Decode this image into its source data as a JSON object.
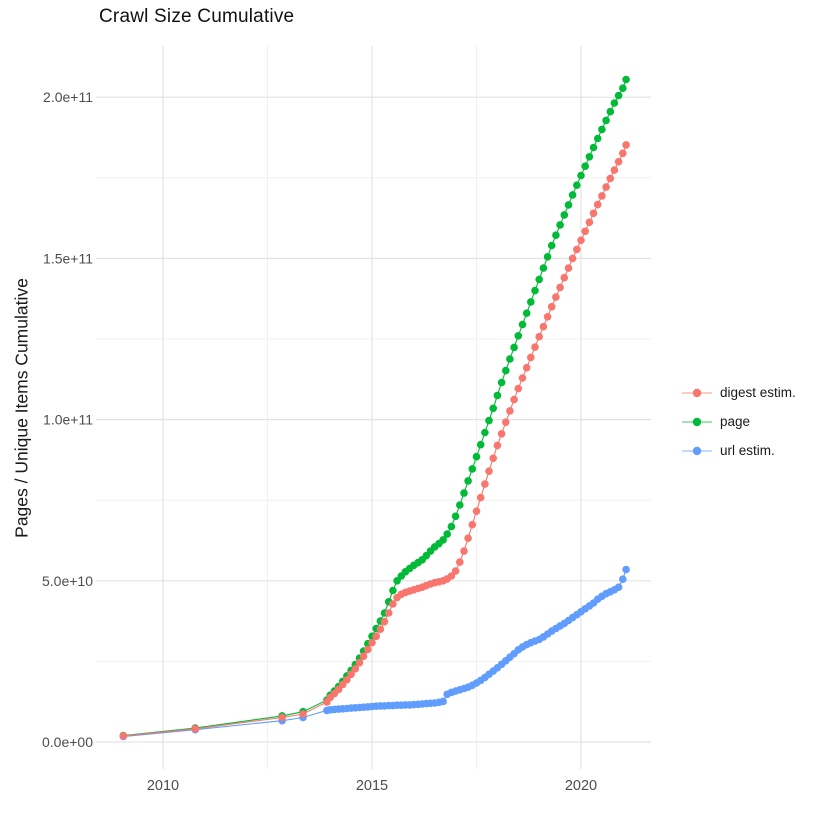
{
  "title": "Crawl Size Cumulative",
  "axes": {
    "y_label": "Pages / Unique Items Cumulative",
    "y_ticks": [
      {
        "label": "0.0e+00",
        "value": 0
      },
      {
        "label": "5.0e+10",
        "value": 50000000000.0
      },
      {
        "label": "1.0e+11",
        "value": 100000000000.0
      },
      {
        "label": "1.5e+11",
        "value": 150000000000.0
      },
      {
        "label": "2.0e+11",
        "value": 200000000000.0
      }
    ],
    "y_minor": [
      25000000000.0,
      75000000000.0,
      125000000000.0,
      175000000000.0
    ],
    "x_ticks": [
      {
        "label": "2010",
        "value": 2010
      },
      {
        "label": "2015",
        "value": 2015
      },
      {
        "label": "2020",
        "value": 2020
      }
    ],
    "x_minor": [
      2012.5,
      2017.5
    ]
  },
  "legend": [
    {
      "label": "digest estim.",
      "color": "#F8766D"
    },
    {
      "label": "page",
      "color": "#00BA38"
    },
    {
      "label": "url estim.",
      "color": "#619CFF"
    }
  ],
  "chart_data": {
    "type": "scatter",
    "title": "Crawl Size Cumulative",
    "xlabel": "",
    "ylabel": "Pages / Unique Items Cumulative",
    "x_range": [
      2008.4,
      2021.7
    ],
    "ylim": [
      0,
      210000000000.0
    ],
    "grid": true,
    "legend_position": "right",
    "series": [
      {
        "name": "page",
        "color": "#00BA38",
        "points": [
          [
            2009.05,
            2000000000.0
          ],
          [
            2010.77,
            4300000000.0
          ],
          [
            2012.85,
            8100000000.0
          ],
          [
            2013.35,
            9400000000.0
          ],
          [
            2013.92,
            13000000000.0
          ],
          [
            2014.0,
            14500000000.0
          ],
          [
            2014.1,
            15800000000.0
          ],
          [
            2014.2,
            17200000000.0
          ],
          [
            2014.3,
            18800000000.0
          ],
          [
            2014.4,
            20500000000.0
          ],
          [
            2014.5,
            22200000000.0
          ],
          [
            2014.6,
            24000000000.0
          ],
          [
            2014.7,
            26000000000.0
          ],
          [
            2014.8,
            28200000000.0
          ],
          [
            2014.9,
            30500000000.0
          ],
          [
            2015.0,
            32800000000.0
          ],
          [
            2015.1,
            35200000000.0
          ],
          [
            2015.2,
            37500000000.0
          ],
          [
            2015.3,
            40000000000.0
          ],
          [
            2015.4,
            43500000000.0
          ],
          [
            2015.5,
            47000000000.0
          ],
          [
            2015.6,
            50000000000.0
          ],
          [
            2015.7,
            51500000000.0
          ],
          [
            2015.8,
            52800000000.0
          ],
          [
            2015.9,
            53800000000.0
          ],
          [
            2016.0,
            54800000000.0
          ],
          [
            2016.1,
            55600000000.0
          ],
          [
            2016.2,
            56500000000.0
          ],
          [
            2016.3,
            57800000000.0
          ],
          [
            2016.4,
            59200000000.0
          ],
          [
            2016.5,
            60500000000.0
          ],
          [
            2016.6,
            61500000000.0
          ],
          [
            2016.7,
            62700000000.0
          ],
          [
            2016.8,
            64500000000.0
          ],
          [
            2016.9,
            66800000000.0
          ],
          [
            2017.0,
            70000000000.0
          ],
          [
            2017.1,
            73500000000.0
          ],
          [
            2017.2,
            77200000000.0
          ],
          [
            2017.3,
            81000000000.0
          ],
          [
            2017.4,
            84700000000.0
          ],
          [
            2017.5,
            88500000000.0
          ],
          [
            2017.6,
            92200000000.0
          ],
          [
            2017.7,
            96000000000.0
          ],
          [
            2017.8,
            99700000000.0
          ],
          [
            2017.9,
            103500000000.0
          ],
          [
            2018.0,
            107500000000.0
          ],
          [
            2018.1,
            111500000000.0
          ],
          [
            2018.2,
            115200000000.0
          ],
          [
            2018.3,
            118800000000.0
          ],
          [
            2018.4,
            122400000000.0
          ],
          [
            2018.5,
            126000000000.0
          ],
          [
            2018.6,
            129500000000.0
          ],
          [
            2018.7,
            133000000000.0
          ],
          [
            2018.8,
            136500000000.0
          ],
          [
            2018.9,
            140000000000.0
          ],
          [
            2019.0,
            143500000000.0
          ],
          [
            2019.1,
            147000000000.0
          ],
          [
            2019.2,
            150500000000.0
          ],
          [
            2019.3,
            154000000000.0
          ],
          [
            2019.4,
            157200000000.0
          ],
          [
            2019.5,
            160400000000.0
          ],
          [
            2019.6,
            163500000000.0
          ],
          [
            2019.7,
            166600000000.0
          ],
          [
            2019.8,
            169700000000.0
          ],
          [
            2019.9,
            172700000000.0
          ],
          [
            2020.0,
            175700000000.0
          ],
          [
            2020.1,
            178600000000.0
          ],
          [
            2020.2,
            181500000000.0
          ],
          [
            2020.3,
            184400000000.0
          ],
          [
            2020.4,
            187200000000.0
          ],
          [
            2020.5,
            190000000000.0
          ],
          [
            2020.6,
            192800000000.0
          ],
          [
            2020.7,
            195500000000.0
          ],
          [
            2020.8,
            198200000000.0
          ],
          [
            2020.9,
            200500000000.0
          ],
          [
            2021.0,
            202800000000.0
          ],
          [
            2021.08,
            205500000000.0
          ]
        ]
      },
      {
        "name": "url estim.",
        "color": "#619CFF",
        "points": [
          [
            2009.05,
            1700000000.0
          ],
          [
            2010.77,
            3800000000.0
          ],
          [
            2012.85,
            6600000000.0
          ],
          [
            2013.35,
            7600000000.0
          ],
          [
            2013.92,
            9800000000.0
          ],
          [
            2014.0,
            10000000000.0
          ],
          [
            2014.1,
            10100000000.0
          ],
          [
            2014.2,
            10200000000.0
          ],
          [
            2014.3,
            10300000000.0
          ],
          [
            2014.4,
            10400000000.0
          ],
          [
            2014.5,
            10500000000.0
          ],
          [
            2014.6,
            10600000000.0
          ],
          [
            2014.7,
            10700000000.0
          ],
          [
            2014.8,
            10800000000.0
          ],
          [
            2014.9,
            10900000000.0
          ],
          [
            2015.0,
            11000000000.0
          ],
          [
            2015.1,
            11100000000.0
          ],
          [
            2015.2,
            11200000000.0
          ],
          [
            2015.3,
            11200000000.0
          ],
          [
            2015.4,
            11300000000.0
          ],
          [
            2015.5,
            11300000000.0
          ],
          [
            2015.6,
            11400000000.0
          ],
          [
            2015.7,
            11400000000.0
          ],
          [
            2015.8,
            11500000000.0
          ],
          [
            2015.9,
            11500000000.0
          ],
          [
            2016.0,
            11600000000.0
          ],
          [
            2016.1,
            11700000000.0
          ],
          [
            2016.2,
            11800000000.0
          ],
          [
            2016.3,
            11900000000.0
          ],
          [
            2016.4,
            12000000000.0
          ],
          [
            2016.5,
            12100000000.0
          ],
          [
            2016.6,
            12300000000.0
          ],
          [
            2016.7,
            12600000000.0
          ],
          [
            2016.8,
            14800000000.0
          ],
          [
            2016.9,
            15400000000.0
          ],
          [
            2017.0,
            15800000000.0
          ],
          [
            2017.1,
            16200000000.0
          ],
          [
            2017.2,
            16600000000.0
          ],
          [
            2017.3,
            17000000000.0
          ],
          [
            2017.4,
            17600000000.0
          ],
          [
            2017.5,
            18300000000.0
          ],
          [
            2017.6,
            19100000000.0
          ],
          [
            2017.7,
            20000000000.0
          ],
          [
            2017.8,
            21000000000.0
          ],
          [
            2017.9,
            22000000000.0
          ],
          [
            2018.0,
            23000000000.0
          ],
          [
            2018.1,
            24100000000.0
          ],
          [
            2018.2,
            25200000000.0
          ],
          [
            2018.3,
            26300000000.0
          ],
          [
            2018.4,
            27400000000.0
          ],
          [
            2018.5,
            28600000000.0
          ],
          [
            2018.6,
            29500000000.0
          ],
          [
            2018.7,
            30200000000.0
          ],
          [
            2018.8,
            30800000000.0
          ],
          [
            2018.9,
            31300000000.0
          ],
          [
            2019.0,
            31800000000.0
          ],
          [
            2019.1,
            32600000000.0
          ],
          [
            2019.2,
            33500000000.0
          ],
          [
            2019.3,
            34400000000.0
          ],
          [
            2019.4,
            35200000000.0
          ],
          [
            2019.5,
            36000000000.0
          ],
          [
            2019.6,
            36800000000.0
          ],
          [
            2019.7,
            37700000000.0
          ],
          [
            2019.8,
            38600000000.0
          ],
          [
            2019.9,
            39500000000.0
          ],
          [
            2020.0,
            40400000000.0
          ],
          [
            2020.1,
            41300000000.0
          ],
          [
            2020.2,
            42200000000.0
          ],
          [
            2020.3,
            43100000000.0
          ],
          [
            2020.4,
            44300000000.0
          ],
          [
            2020.5,
            45200000000.0
          ],
          [
            2020.6,
            46000000000.0
          ],
          [
            2020.7,
            46600000000.0
          ],
          [
            2020.8,
            47200000000.0
          ],
          [
            2020.9,
            48000000000.0
          ],
          [
            2021.0,
            50500000000.0
          ],
          [
            2021.08,
            53500000000.0
          ]
        ]
      },
      {
        "name": "digest estim.",
        "color": "#F8766D",
        "points": [
          [
            2009.05,
            1900000000.0
          ],
          [
            2010.77,
            4100000000.0
          ],
          [
            2012.85,
            7600000000.0
          ],
          [
            2013.35,
            8700000000.0
          ],
          [
            2013.92,
            12400000000.0
          ],
          [
            2014.0,
            13800000000.0
          ],
          [
            2014.1,
            15000000000.0
          ],
          [
            2014.2,
            16300000000.0
          ],
          [
            2014.3,
            17800000000.0
          ],
          [
            2014.4,
            19300000000.0
          ],
          [
            2014.5,
            21000000000.0
          ],
          [
            2014.6,
            22700000000.0
          ],
          [
            2014.7,
            24600000000.0
          ],
          [
            2014.8,
            26600000000.0
          ],
          [
            2014.9,
            28700000000.0
          ],
          [
            2015.0,
            30800000000.0
          ],
          [
            2015.1,
            32800000000.0
          ],
          [
            2015.2,
            35000000000.0
          ],
          [
            2015.3,
            37300000000.0
          ],
          [
            2015.4,
            40000000000.0
          ],
          [
            2015.5,
            42800000000.0
          ],
          [
            2015.6,
            44800000000.0
          ],
          [
            2015.7,
            45800000000.0
          ],
          [
            2015.8,
            46400000000.0
          ],
          [
            2015.9,
            46800000000.0
          ],
          [
            2016.0,
            47200000000.0
          ],
          [
            2016.1,
            47600000000.0
          ],
          [
            2016.2,
            48000000000.0
          ],
          [
            2016.3,
            48500000000.0
          ],
          [
            2016.4,
            49000000000.0
          ],
          [
            2016.5,
            49400000000.0
          ],
          [
            2016.6,
            49700000000.0
          ],
          [
            2016.7,
            50000000000.0
          ],
          [
            2016.8,
            50600000000.0
          ],
          [
            2016.9,
            51500000000.0
          ],
          [
            2017.0,
            53000000000.0
          ],
          [
            2017.1,
            55800000000.0
          ],
          [
            2017.2,
            59200000000.0
          ],
          [
            2017.3,
            63200000000.0
          ],
          [
            2017.4,
            67400000000.0
          ],
          [
            2017.5,
            71600000000.0
          ],
          [
            2017.6,
            75800000000.0
          ],
          [
            2017.7,
            80000000000.0
          ],
          [
            2017.8,
            84000000000.0
          ],
          [
            2017.9,
            88000000000.0
          ],
          [
            2018.0,
            92000000000.0
          ],
          [
            2018.1,
            95600000000.0
          ],
          [
            2018.2,
            99200000000.0
          ],
          [
            2018.3,
            102700000000.0
          ],
          [
            2018.4,
            106200000000.0
          ],
          [
            2018.5,
            109600000000.0
          ],
          [
            2018.6,
            112900000000.0
          ],
          [
            2018.7,
            116100000000.0
          ],
          [
            2018.8,
            119300000000.0
          ],
          [
            2018.9,
            122500000000.0
          ],
          [
            2019.0,
            125700000000.0
          ],
          [
            2019.1,
            128800000000.0
          ],
          [
            2019.2,
            131900000000.0
          ],
          [
            2019.3,
            135000000000.0
          ],
          [
            2019.4,
            138000000000.0
          ],
          [
            2019.5,
            141000000000.0
          ],
          [
            2019.6,
            144000000000.0
          ],
          [
            2019.7,
            147000000000.0
          ],
          [
            2019.8,
            150000000000.0
          ],
          [
            2019.9,
            152800000000.0
          ],
          [
            2020.0,
            155600000000.0
          ],
          [
            2020.1,
            158400000000.0
          ],
          [
            2020.2,
            161200000000.0
          ],
          [
            2020.3,
            164000000000.0
          ],
          [
            2020.4,
            166700000000.0
          ],
          [
            2020.5,
            169400000000.0
          ],
          [
            2020.6,
            172100000000.0
          ],
          [
            2020.7,
            174800000000.0
          ],
          [
            2020.8,
            177400000000.0
          ],
          [
            2020.9,
            180000000000.0
          ],
          [
            2021.0,
            182600000000.0
          ],
          [
            2021.08,
            185200000000.0
          ]
        ]
      }
    ]
  }
}
